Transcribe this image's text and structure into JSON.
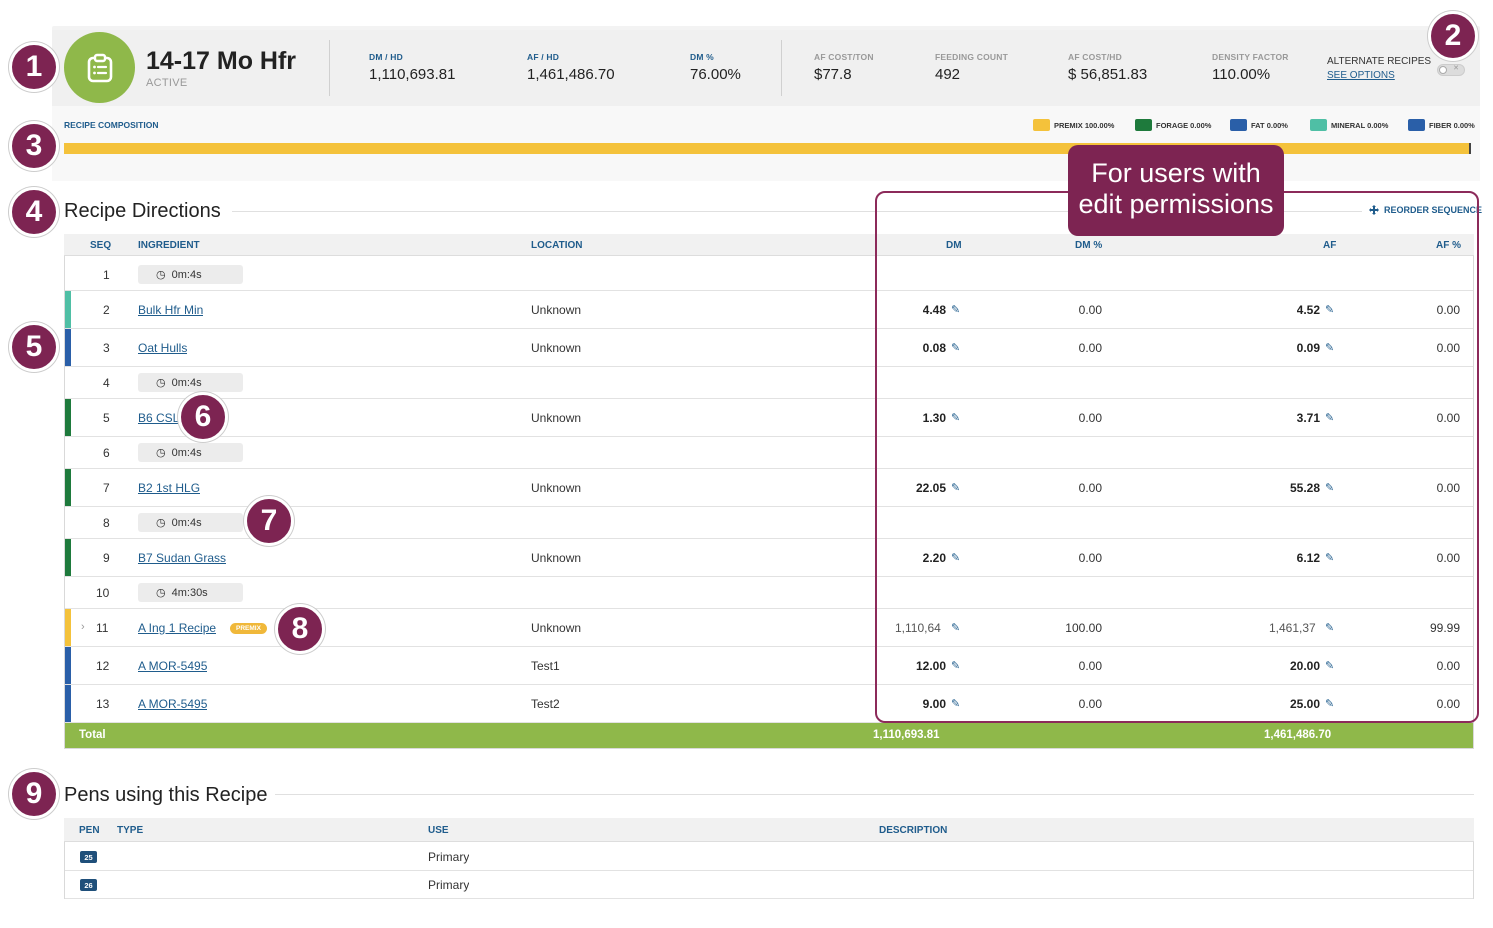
{
  "header": {
    "title": "14-17 Mo Hfr",
    "status": "ACTIVE",
    "stats": [
      {
        "label": "DM / HD",
        "value": "1,110,693.81",
        "tone": "blue"
      },
      {
        "label": "AF / HD",
        "value": "1,461,486.70",
        "tone": "blue"
      },
      {
        "label": "DM %",
        "value": "76.00%",
        "tone": "blue"
      },
      {
        "label": "AF COST/TON",
        "value": "$77.8",
        "tone": "grey"
      },
      {
        "label": "FEEDING COUNT",
        "value": "492",
        "tone": "grey"
      },
      {
        "label": "AF COST/HD",
        "value": "$ 56,851.83",
        "tone": "grey"
      },
      {
        "label": "DENSITY FACTOR",
        "value": "110.00%",
        "tone": "grey"
      }
    ],
    "alternate_recipes_label": "ALTERNATE RECIPES",
    "see_options_label": "SEE OPTIONS",
    "toggle_glyph": "✕"
  },
  "composition": {
    "label": "RECIPE COMPOSITION",
    "legend": [
      {
        "label": "PREMIX 100.00%",
        "color": "#f4c23b"
      },
      {
        "label": "FORAGE 0.00%",
        "color": "#1e7a3c"
      },
      {
        "label": "FAT 0.00%",
        "color": "#2a5fa8"
      },
      {
        "label": "MINERAL 0.00%",
        "color": "#4fbfa5"
      },
      {
        "label": "FIBER 0.00%",
        "color": "#2a5fa8"
      }
    ],
    "premix_percent": 100
  },
  "directions": {
    "title": "Recipe Directions",
    "reorder_label": "REORDER SEQUENCE",
    "columns": {
      "seq": "SEQ",
      "ingredient": "INGREDIENT",
      "location": "LOCATION",
      "dm": "DM",
      "dm_pct": "DM %",
      "af": "AF",
      "af_pct": "AF %"
    },
    "rows": [
      {
        "seq": "1",
        "kind": "timer",
        "time": "0m:4s"
      },
      {
        "seq": "2",
        "kind": "ingredient",
        "name": "Bulk Hfr Min",
        "location": "Unknown",
        "dm": "4.48",
        "dm_pct": "0.00",
        "af": "4.52",
        "af_pct": "0.00",
        "stripe": "#4fbfa5"
      },
      {
        "seq": "3",
        "kind": "ingredient",
        "name": "Oat Hulls",
        "location": "Unknown",
        "dm": "0.08",
        "dm_pct": "0.00",
        "af": "0.09",
        "af_pct": "0.00",
        "stripe": "#2a5fa8"
      },
      {
        "seq": "4",
        "kind": "timer",
        "time": "0m:4s"
      },
      {
        "seq": "5",
        "kind": "ingredient",
        "name": "B6 CSL",
        "location": "Unknown",
        "dm": "1.30",
        "dm_pct": "0.00",
        "af": "3.71",
        "af_pct": "0.00",
        "stripe": "#1e7a3c"
      },
      {
        "seq": "6",
        "kind": "timer",
        "time": "0m:4s"
      },
      {
        "seq": "7",
        "kind": "ingredient",
        "name": "B2 1st HLG",
        "location": "Unknown",
        "dm": "22.05",
        "dm_pct": "0.00",
        "af": "55.28",
        "af_pct": "0.00",
        "stripe": "#1e7a3c"
      },
      {
        "seq": "8",
        "kind": "timer",
        "time": "0m:4s"
      },
      {
        "seq": "9",
        "kind": "ingredient",
        "name": "B7 Sudan Grass",
        "location": "Unknown",
        "dm": "2.20",
        "dm_pct": "0.00",
        "af": "6.12",
        "af_pct": "0.00",
        "stripe": "#1e7a3c"
      },
      {
        "seq": "10",
        "kind": "timer",
        "time": "4m:30s"
      },
      {
        "seq": "11",
        "kind": "ingredient",
        "name": "A Ing 1 Recipe",
        "badge": "PREMIX",
        "expandable": true,
        "location": "Unknown",
        "dm": "1,110,64",
        "dm_pct": "100.00",
        "af": "1,461,37",
        "af_pct": "99.99",
        "stripe": "#f4c23b",
        "muted": true
      },
      {
        "seq": "12",
        "kind": "ingredient",
        "name": "A MOR-5495",
        "location": "Test1",
        "dm": "12.00",
        "dm_pct": "0.00",
        "af": "20.00",
        "af_pct": "0.00",
        "stripe": "#2a5fa8"
      },
      {
        "seq": "13",
        "kind": "ingredient",
        "name": "A MOR-5495",
        "location": "Test2",
        "dm": "9.00",
        "dm_pct": "0.00",
        "af": "25.00",
        "af_pct": "0.00",
        "stripe": "#2a5fa8"
      }
    ],
    "total": {
      "label": "Total",
      "dm": "1,110,693.81",
      "af": "1,461,486.70"
    },
    "total_color": "#8fb84a"
  },
  "callout": {
    "line1": "For users with",
    "line2": "edit permissions"
  },
  "pens": {
    "title": "Pens using this Recipe",
    "columns": {
      "pen": "PEN",
      "type": "TYPE",
      "use": "USE",
      "description": "DESCRIPTION"
    },
    "rows": [
      {
        "pen": "25",
        "type": "",
        "use": "Primary",
        "description": ""
      },
      {
        "pen": "26",
        "type": "",
        "use": "Primary",
        "description": ""
      }
    ]
  },
  "badges": [
    "1",
    "2",
    "3",
    "4",
    "5",
    "6",
    "7",
    "8",
    "9"
  ]
}
